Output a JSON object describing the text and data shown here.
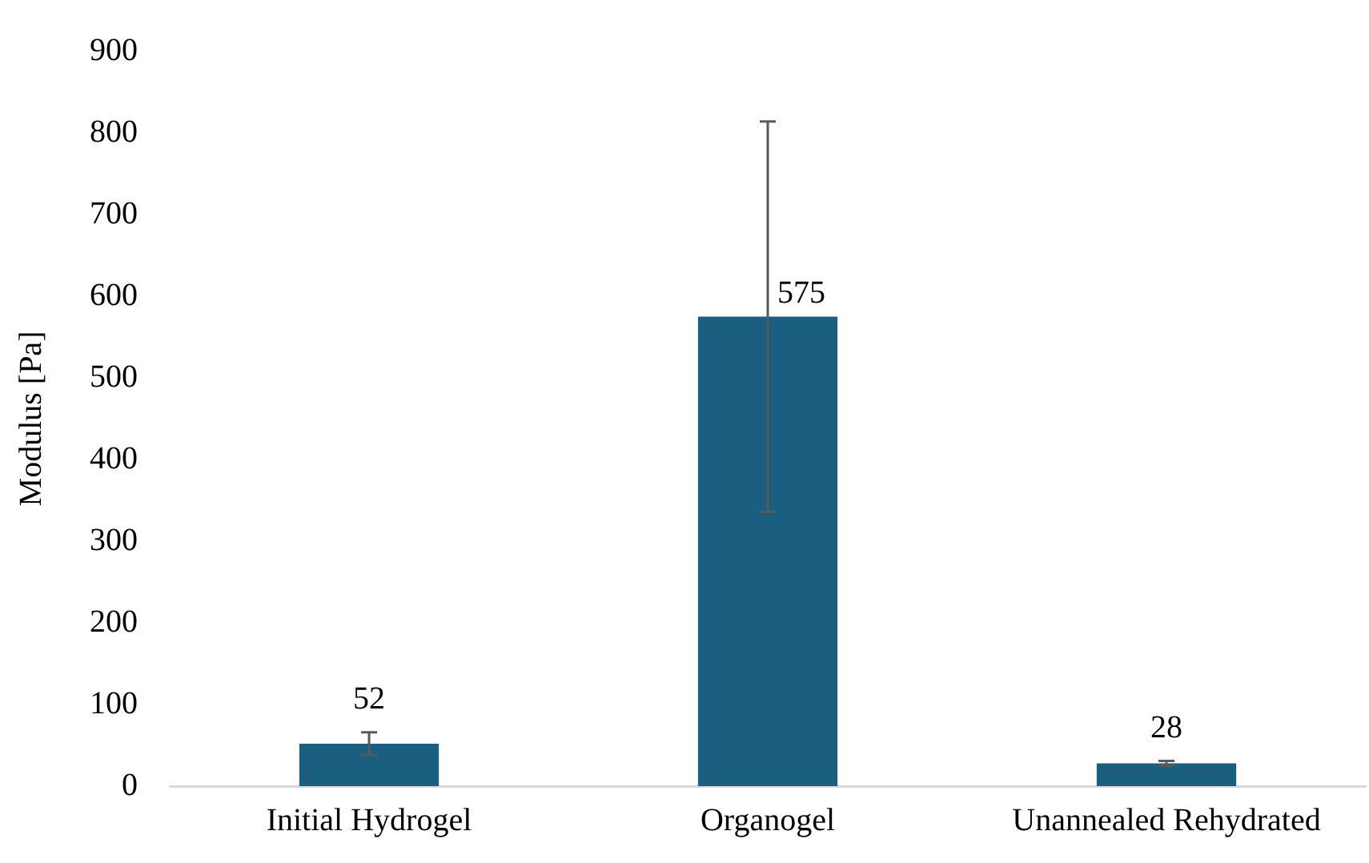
{
  "chart_data": {
    "type": "bar",
    "ylabel": "Modulus [Pa]",
    "categories": [
      "Initial Hydrogel",
      "Organogel",
      "Unannealed Rehydrated"
    ],
    "values": [
      52,
      575,
      28
    ],
    "errors": [
      14,
      239,
      3
    ],
    "color": "#1a5e80",
    "ylim": [
      0,
      900
    ],
    "yticks": [
      0,
      100,
      200,
      300,
      400,
      500,
      600,
      700,
      800,
      900
    ],
    "data_labels": true,
    "grid": false,
    "legend": false
  }
}
